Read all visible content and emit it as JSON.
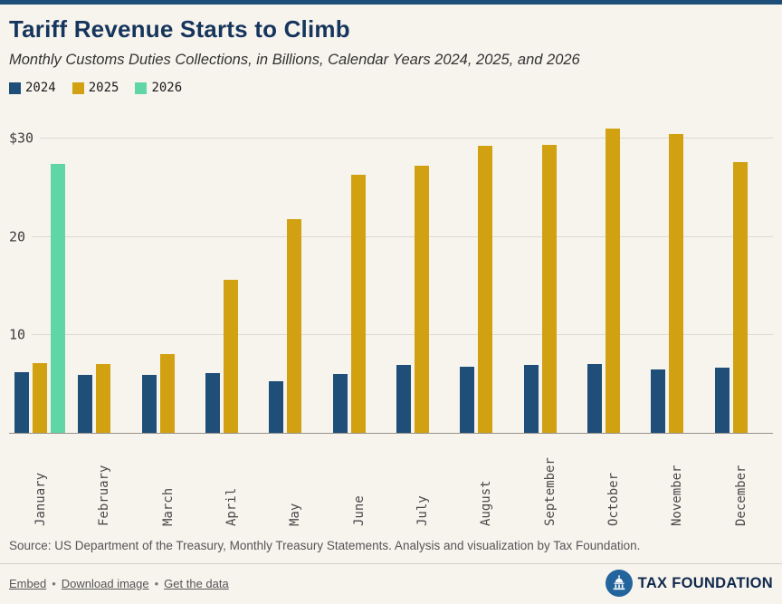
{
  "header": {
    "title": "Tariff Revenue Starts to Climb",
    "subtitle": "Monthly Customs Duties Collections, in Billions, Calendar Years 2024, 2025, and 2026"
  },
  "chart_data": {
    "type": "bar",
    "title": "Tariff Revenue Starts to Climb",
    "xlabel": "",
    "ylabel": "",
    "categories": [
      "January",
      "February",
      "March",
      "April",
      "May",
      "June",
      "July",
      "August",
      "September",
      "October",
      "November",
      "December"
    ],
    "series": [
      {
        "name": "2024",
        "color": "#1f4e79",
        "values": [
          6.3,
          6.0,
          6.0,
          6.2,
          5.3,
          6.1,
          7.0,
          6.8,
          7.0,
          7.1,
          6.5,
          6.7
        ]
      },
      {
        "name": "2025",
        "color": "#d1a112",
        "values": [
          7.2,
          7.1,
          8.1,
          15.6,
          21.8,
          26.3,
          27.2,
          29.2,
          29.3,
          31.0,
          30.4,
          27.6
        ]
      },
      {
        "name": "2026",
        "color": "#5fd6a4",
        "values": [
          27.4,
          null,
          null,
          null,
          null,
          null,
          null,
          null,
          null,
          null,
          null,
          null
        ]
      }
    ],
    "ylim": [
      0,
      32
    ],
    "yticks": [
      {
        "value": 10,
        "label": "10"
      },
      {
        "value": 20,
        "label": "20"
      },
      {
        "value": 30,
        "label": "$30"
      }
    ],
    "grid": true,
    "legend_position": "top-left"
  },
  "footer": {
    "source": "Source: US Department of the Treasury, Monthly Treasury Statements. Analysis and visualization by Tax Foundation.",
    "links": [
      "Embed",
      "Download image",
      "Get the data"
    ],
    "separator": "•",
    "brand": "TAX FOUNDATION"
  }
}
